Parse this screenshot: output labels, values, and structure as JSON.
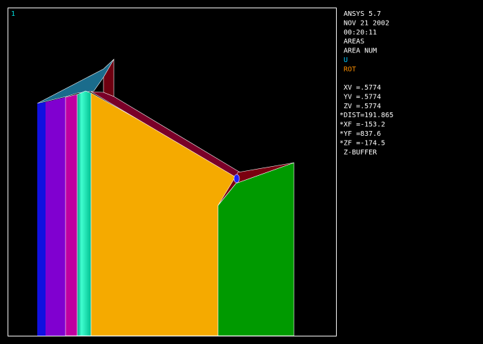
{
  "window_number": "1",
  "info": {
    "program": "ANSYS 5.7",
    "date": "NOV 21 2002",
    "time": "00:20:11",
    "plot_type": "AREAS",
    "numbering": "AREA NUM",
    "legend_u": "U",
    "legend_rot": "ROT",
    "view": [
      "XV =.5774",
      "YV =.5774",
      "ZV =.5774",
      "*DIST=191.865",
      "*XF =-153.2",
      "*YF =837.6",
      "*ZF =-174.5"
    ],
    "buffer": "Z-BUFFER"
  }
}
